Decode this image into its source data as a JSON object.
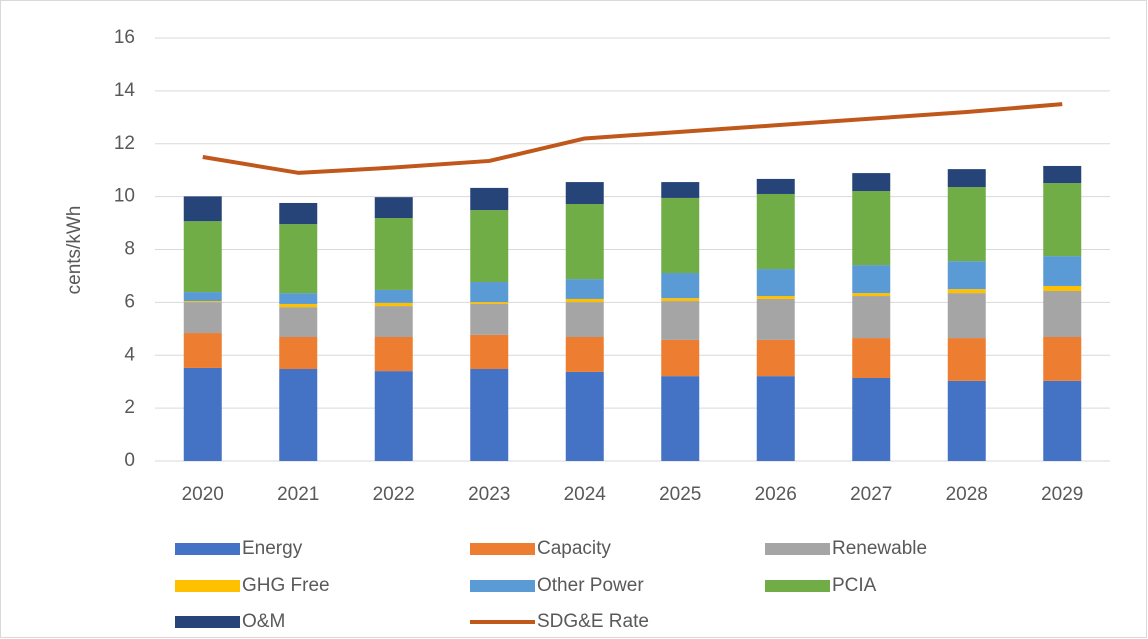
{
  "chart_data": {
    "type": "bar",
    "stacked": true,
    "y_label": "cents/kWh",
    "categories": [
      "2020",
      "2021",
      "2022",
      "2023",
      "2024",
      "2025",
      "2026",
      "2027",
      "2028",
      "2029"
    ],
    "series": [
      {
        "name": "Energy",
        "color": "#4472c4",
        "values": [
          3.52,
          3.48,
          3.4,
          3.48,
          3.37,
          3.21,
          3.21,
          3.14,
          3.03,
          3.03
        ]
      },
      {
        "name": "Capacity",
        "color": "#ed7d31",
        "values": [
          1.32,
          1.21,
          1.29,
          1.29,
          1.32,
          1.37,
          1.37,
          1.51,
          1.62,
          1.66
        ]
      },
      {
        "name": "Renewable",
        "color": "#a5a5a5",
        "values": [
          1.17,
          1.13,
          1.17,
          1.17,
          1.32,
          1.47,
          1.55,
          1.59,
          1.7,
          1.74
        ]
      },
      {
        "name": "GHG Free",
        "color": "#ffc000",
        "values": [
          0.04,
          0.12,
          0.12,
          0.07,
          0.12,
          0.11,
          0.11,
          0.11,
          0.15,
          0.19
        ]
      },
      {
        "name": "Other Power",
        "color": "#5b9bd5",
        "values": [
          0.34,
          0.41,
          0.49,
          0.76,
          0.75,
          0.95,
          1.02,
          1.06,
          1.06,
          1.13
        ]
      },
      {
        "name": "PCIA",
        "color": "#70ad47",
        "values": [
          2.68,
          2.61,
          2.72,
          2.72,
          2.84,
          2.84,
          2.84,
          2.8,
          2.8,
          2.76
        ]
      },
      {
        "name": "O&M",
        "color": "#264478",
        "values": [
          0.94,
          0.8,
          0.79,
          0.84,
          0.83,
          0.6,
          0.57,
          0.68,
          0.68,
          0.65
        ]
      },
      {
        "name": "SDG&E Rate",
        "color": "#c0571b",
        "type": "line",
        "values": [
          11.5,
          10.9,
          11.1,
          11.35,
          12.2,
          12.45,
          12.7,
          12.95,
          13.2,
          13.5
        ]
      }
    ],
    "ylim": [
      0,
      16
    ],
    "yticks": [
      0,
      2,
      4,
      6,
      8,
      10,
      12,
      14,
      16
    ],
    "grid": true,
    "legend": "bottom"
  }
}
